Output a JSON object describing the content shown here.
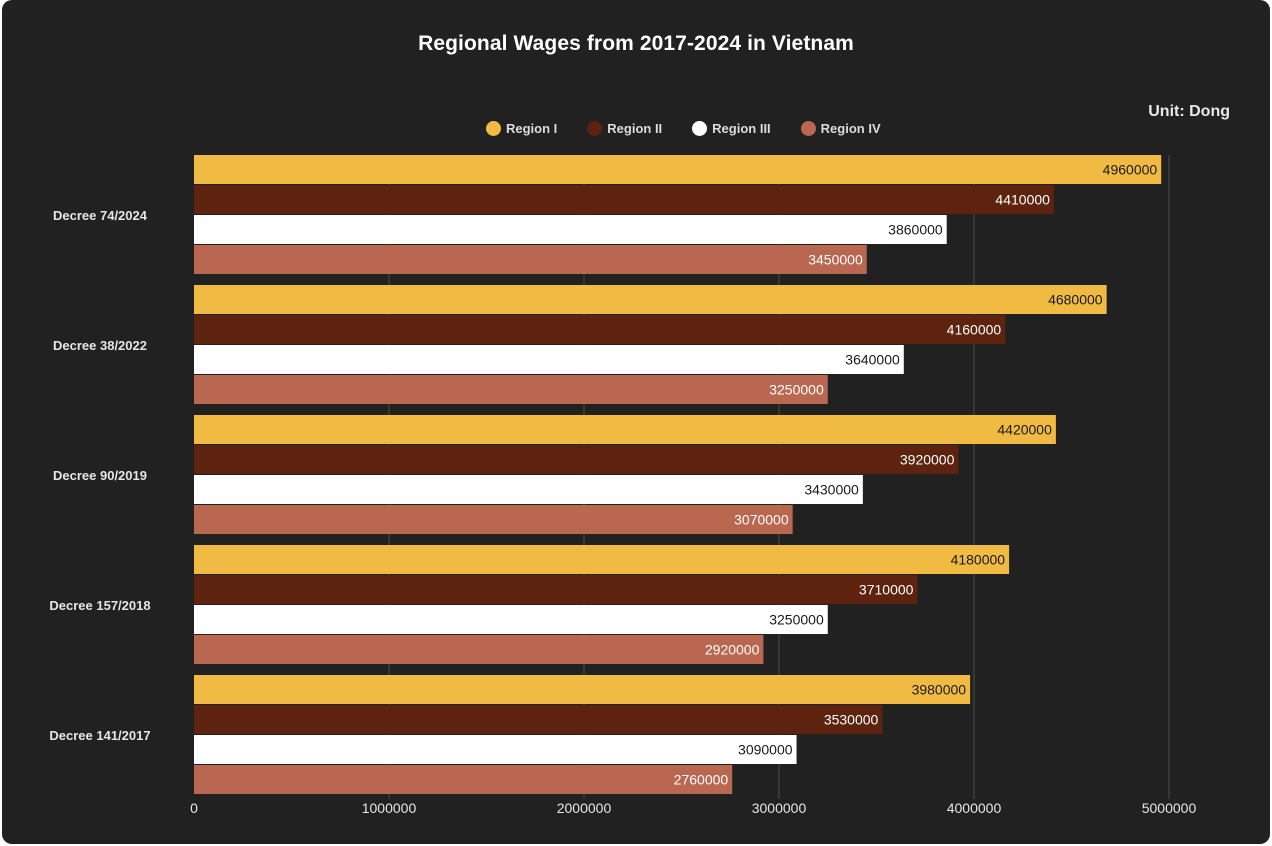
{
  "unit_label": "Unit: Dong",
  "chart_data": {
    "type": "bar",
    "orientation": "horizontal",
    "title": "Regional Wages from 2017-2024 in Vietnam",
    "categories": [
      "Decree 74/2024",
      "Decree 38/2022",
      "Decree 90/2019",
      "Decree 157/2018",
      "Decree 141/2017"
    ],
    "series": [
      {
        "name": "Region I",
        "color": "#f1bb43",
        "label_color": "#1a1a1a",
        "values": [
          4960000,
          4680000,
          4420000,
          4180000,
          3980000
        ]
      },
      {
        "name": "Region II",
        "color": "#5d230e",
        "label_color": "#ffffff",
        "values": [
          4410000,
          4160000,
          3920000,
          3710000,
          3530000
        ]
      },
      {
        "name": "Region III",
        "color": "#ffffff",
        "label_color": "#1a1a1a",
        "values": [
          3860000,
          3640000,
          3430000,
          3250000,
          3090000
        ]
      },
      {
        "name": "Region IV",
        "color": "#b96750",
        "label_color": "#ffffff",
        "values": [
          3450000,
          3250000,
          3070000,
          2920000,
          2760000
        ]
      }
    ],
    "x_ticks": [
      0,
      1000000,
      2000000,
      3000000,
      4000000,
      5000000
    ],
    "xlim": [
      0,
      5000000
    ],
    "grid": true,
    "legend_position": "top"
  }
}
